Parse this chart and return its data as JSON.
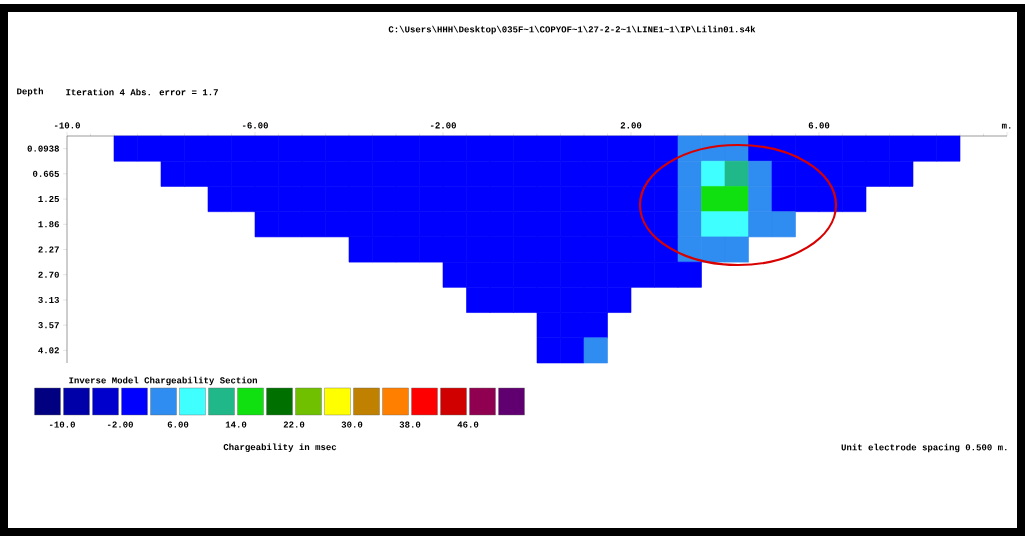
{
  "chart_data": {
    "type": "heatmap",
    "title": "C:\\Users\\HHH\\Desktop\\035F~1\\COPYOF~1\\27-2-2~1\\LINE1~1\\IP\\Lilin01.s4k",
    "subtitle": "Iteration 4 Abs. error = 1.7",
    "ylabel": "Depth",
    "clabel": "Chargeability in msec",
    "annotations": [
      "Inverse Model Chargeability Section",
      "Unit electrode spacing 0.500 m."
    ],
    "x": [
      -9.75,
      -9.25,
      -8.75,
      -8.25,
      -7.75,
      -7.25,
      -6.75,
      -6.25,
      -5.75,
      -5.25,
      -4.75,
      -4.25,
      -3.75,
      -3.25,
      -2.75,
      -2.25,
      -1.75,
      -1.25,
      -0.75,
      -0.25,
      0.25,
      0.75,
      1.25,
      1.75,
      2.25,
      2.75,
      3.25,
      3.75,
      4.25,
      4.75,
      5.25,
      5.75,
      6.25,
      6.75,
      7.25,
      7.75,
      8.25,
      8.75,
      9.25,
      9.75
    ],
    "y_categories": [
      "0.0938",
      "0.665",
      "1.25",
      "1.86",
      "2.27",
      "2.70",
      "3.13",
      "3.57",
      "4.02"
    ],
    "cells": [
      [
        null,
        null,
        0,
        0,
        0,
        0,
        0,
        0,
        0,
        0,
        0,
        0,
        0,
        0,
        0,
        0,
        0,
        0,
        0,
        0,
        0,
        0,
        0,
        0,
        0,
        0,
        4,
        4,
        4,
        0,
        0,
        0,
        0,
        0,
        0,
        0,
        0,
        0,
        null,
        null
      ],
      [
        null,
        null,
        null,
        null,
        0,
        0,
        0,
        0,
        0,
        0,
        0,
        0,
        0,
        0,
        0,
        0,
        0,
        0,
        0,
        0,
        0,
        0,
        0,
        0,
        0,
        0,
        4,
        8,
        12,
        4,
        0,
        0,
        0,
        0,
        0,
        0,
        null,
        null,
        null,
        null
      ],
      [
        null,
        null,
        null,
        null,
        null,
        null,
        0,
        0,
        0,
        0,
        0,
        0,
        0,
        0,
        0,
        0,
        0,
        0,
        0,
        0,
        0,
        0,
        0,
        0,
        0,
        0,
        4,
        16,
        16,
        4,
        0,
        0,
        0,
        0,
        null,
        null,
        null,
        null,
        null,
        null
      ],
      [
        null,
        null,
        null,
        null,
        null,
        null,
        null,
        null,
        0,
        0,
        0,
        0,
        0,
        0,
        0,
        0,
        0,
        0,
        0,
        0,
        0,
        0,
        0,
        0,
        0,
        0,
        4,
        8,
        8,
        4,
        4,
        null,
        null,
        null,
        null,
        null,
        null,
        null,
        null,
        null
      ],
      [
        null,
        null,
        null,
        null,
        null,
        null,
        null,
        null,
        null,
        null,
        null,
        null,
        0,
        0,
        0,
        0,
        0,
        0,
        0,
        0,
        0,
        0,
        0,
        0,
        0,
        0,
        4,
        4,
        4,
        null,
        null,
        null,
        null,
        null,
        null,
        null,
        null,
        null,
        null,
        null
      ],
      [
        null,
        null,
        null,
        null,
        null,
        null,
        null,
        null,
        null,
        null,
        null,
        null,
        null,
        null,
        null,
        null,
        0,
        0,
        0,
        0,
        0,
        0,
        0,
        0,
        0,
        0,
        0,
        null,
        null,
        null,
        null,
        null,
        null,
        null,
        null,
        null,
        null,
        null,
        null,
        null
      ],
      [
        null,
        null,
        null,
        null,
        null,
        null,
        null,
        null,
        null,
        null,
        null,
        null,
        null,
        null,
        null,
        null,
        null,
        0,
        0,
        0,
        0,
        0,
        0,
        0,
        null,
        null,
        null,
        null,
        null,
        null,
        null,
        null,
        null,
        null,
        null,
        null,
        null,
        null,
        null,
        null
      ],
      [
        null,
        null,
        null,
        null,
        null,
        null,
        null,
        null,
        null,
        null,
        null,
        null,
        null,
        null,
        null,
        null,
        null,
        null,
        null,
        null,
        0,
        0,
        0,
        null,
        null,
        null,
        null,
        null,
        null,
        null,
        null,
        null,
        null,
        null,
        null,
        null,
        null,
        null,
        null,
        null
      ],
      [
        null,
        null,
        null,
        null,
        null,
        null,
        null,
        null,
        null,
        null,
        null,
        null,
        null,
        null,
        null,
        null,
        null,
        null,
        null,
        null,
        0,
        0,
        4,
        null,
        null,
        null,
        null,
        null,
        null,
        null,
        null,
        null,
        null,
        null,
        null,
        null,
        null,
        null,
        null,
        null
      ]
    ],
    "colors": [
      "#000080",
      "#0000a8",
      "#0000cc",
      "#0000ff",
      "#2f8cf0",
      "#40ffff",
      "#20b888",
      "#10e010",
      "#007000",
      "#70c000",
      "#ffff00",
      "#c08000",
      "#ff8000",
      "#ff0000",
      "#d00000",
      "#900050",
      "#600070"
    ],
    "clim": [
      -14,
      54
    ],
    "cticks": [
      {
        "value": -10,
        "label": "-10.0"
      },
      {
        "value": -2,
        "label": "-2.00"
      },
      {
        "value": 6,
        "label": "6.00"
      },
      {
        "value": 14,
        "label": "14.0"
      },
      {
        "value": 22,
        "label": "22.0"
      },
      {
        "value": 30,
        "label": "30.0"
      },
      {
        "value": 38,
        "label": "38.0"
      },
      {
        "value": 46,
        "label": "46.0"
      }
    ],
    "xlim": [
      -10,
      10
    ],
    "xticks": [
      {
        "value": -10,
        "label": "-10.0"
      },
      {
        "value": -6,
        "label": "-6.00"
      },
      {
        "value": -2,
        "label": "-2.00"
      },
      {
        "value": 2,
        "label": "2.00"
      },
      {
        "value": 6,
        "label": "6.00"
      },
      {
        "value": 10,
        "label": "m."
      }
    ]
  }
}
